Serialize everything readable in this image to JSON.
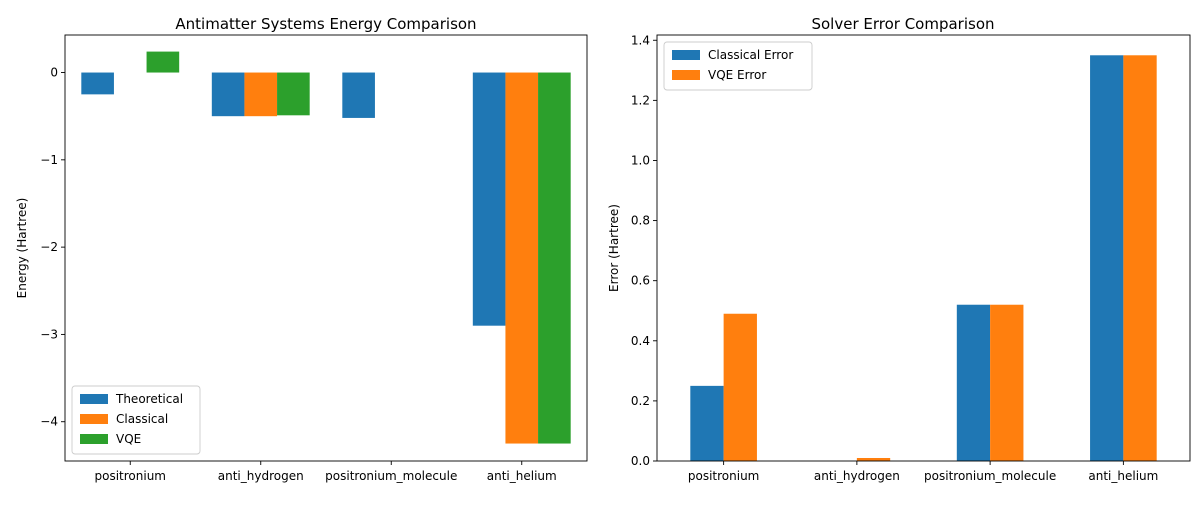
{
  "chart_data": [
    {
      "type": "bar",
      "title": "Antimatter Systems Energy Comparison",
      "xlabel": "",
      "ylabel": "Energy (Hartree)",
      "categories": [
        "positronium",
        "anti_hydrogen",
        "positronium_molecule",
        "anti_helium"
      ],
      "series": [
        {
          "name": "Theoretical",
          "color": "#1f77b4",
          "values": [
            -0.25,
            -0.5,
            -0.52,
            -2.9
          ]
        },
        {
          "name": "Classical",
          "color": "#ff7f0e",
          "values": [
            0,
            -0.5,
            0,
            -4.25
          ]
        },
        {
          "name": "VQE",
          "color": "#2ca02c",
          "values": [
            0.24,
            -0.49,
            0,
            -4.25
          ]
        }
      ],
      "ylim": [
        -4.45,
        0.43
      ],
      "yticks": [
        0,
        -1,
        -2,
        -3,
        -4
      ],
      "ytick_labels": [
        "0",
        "−1",
        "−2",
        "−3",
        "−4"
      ],
      "legend_position": "lower-left",
      "grid": false
    },
    {
      "type": "bar",
      "title": "Solver Error Comparison",
      "xlabel": "",
      "ylabel": "Error (Hartree)",
      "categories": [
        "positronium",
        "anti_hydrogen",
        "positronium_molecule",
        "anti_helium"
      ],
      "series": [
        {
          "name": "Classical Error",
          "color": "#1f77b4",
          "values": [
            0.25,
            0.0,
            0.52,
            1.35
          ]
        },
        {
          "name": "VQE Error",
          "color": "#ff7f0e",
          "values": [
            0.49,
            0.01,
            0.52,
            1.35
          ]
        }
      ],
      "ylim": [
        0,
        1.4175
      ],
      "yticks": [
        0.0,
        0.2,
        0.4,
        0.6,
        0.8,
        1.0,
        1.2,
        1.4
      ],
      "ytick_labels": [
        "0.0",
        "0.2",
        "0.4",
        "0.6",
        "0.8",
        "1.0",
        "1.2",
        "1.4"
      ],
      "legend_position": "upper-left",
      "grid": false
    }
  ]
}
